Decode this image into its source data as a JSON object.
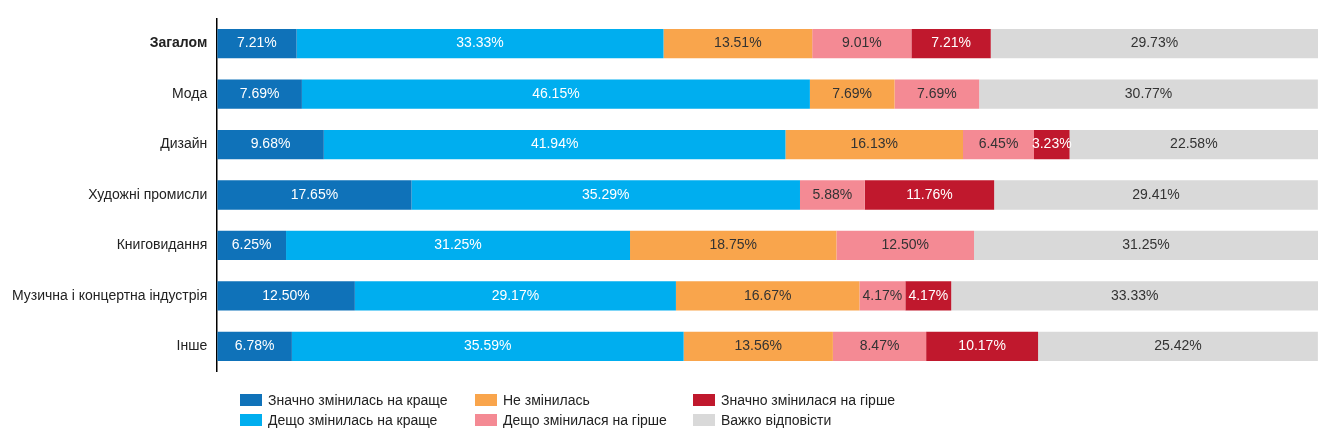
{
  "chart_data": {
    "type": "bar",
    "orientation": "horizontal",
    "stacked": true,
    "legend": "bottom",
    "grid": false,
    "tick_labels": "y",
    "xlim": [
      0,
      100
    ],
    "categories": [
      "Загалом",
      "Мода",
      "Дизайн",
      "Художні промисли",
      "Книговидання",
      "Музична і концертна індустрія",
      "Інше"
    ],
    "series": [
      {
        "name": "Значно змінилась на краще",
        "color": "#0f72b9",
        "values": [
          7.21,
          7.69,
          9.68,
          17.65,
          6.25,
          12.5,
          6.78
        ],
        "value_labels": [
          "7.21%",
          "7.69%",
          "9.68%",
          "17.65%",
          "6.25%",
          "12.50%",
          "6.78%"
        ]
      },
      {
        "name": "Дещо змінилась на краще",
        "color": "#00aeef",
        "values": [
          33.33,
          46.15,
          41.94,
          35.29,
          31.25,
          29.17,
          35.59
        ],
        "value_labels": [
          "33.33%",
          "46.15%",
          "41.94%",
          "35.29%",
          "31.25%",
          "29.17%",
          "35.59%"
        ]
      },
      {
        "name": "Не змінилась",
        "color": "#f9a54c",
        "values": [
          13.51,
          7.69,
          16.13,
          null,
          18.75,
          16.67,
          13.56
        ],
        "value_labels": [
          "13.51%",
          "7.69%",
          "16.13%",
          null,
          "18.75%",
          "16.67%",
          "13.56%"
        ]
      },
      {
        "name": "Дещо змінилася на гірше",
        "color": "#f48a94",
        "values": [
          9.01,
          7.69,
          6.45,
          5.88,
          12.5,
          4.17,
          8.47
        ],
        "value_labels": [
          "9.01%",
          "7.69%",
          "6.45%",
          "5.88%",
          "12.50%",
          "4.17%",
          "8.47%"
        ]
      },
      {
        "name": "Значно змінилася на гірше",
        "color": "#c0182d",
        "values": [
          7.21,
          null,
          3.23,
          11.76,
          null,
          4.17,
          10.17
        ],
        "value_labels": [
          "7.21%",
          null,
          "3.23%",
          "11.76%",
          null,
          "4.17%",
          "10.17%"
        ]
      },
      {
        "name": "Важко відповісти",
        "color": "#d9d9d9",
        "values": [
          29.73,
          30.77,
          22.58,
          29.41,
          31.25,
          33.33,
          25.42
        ],
        "value_labels": [
          "29.73%",
          "30.77%",
          "22.58%",
          "29.41%",
          "31.25%",
          "33.33%",
          "25.42%"
        ]
      }
    ]
  }
}
